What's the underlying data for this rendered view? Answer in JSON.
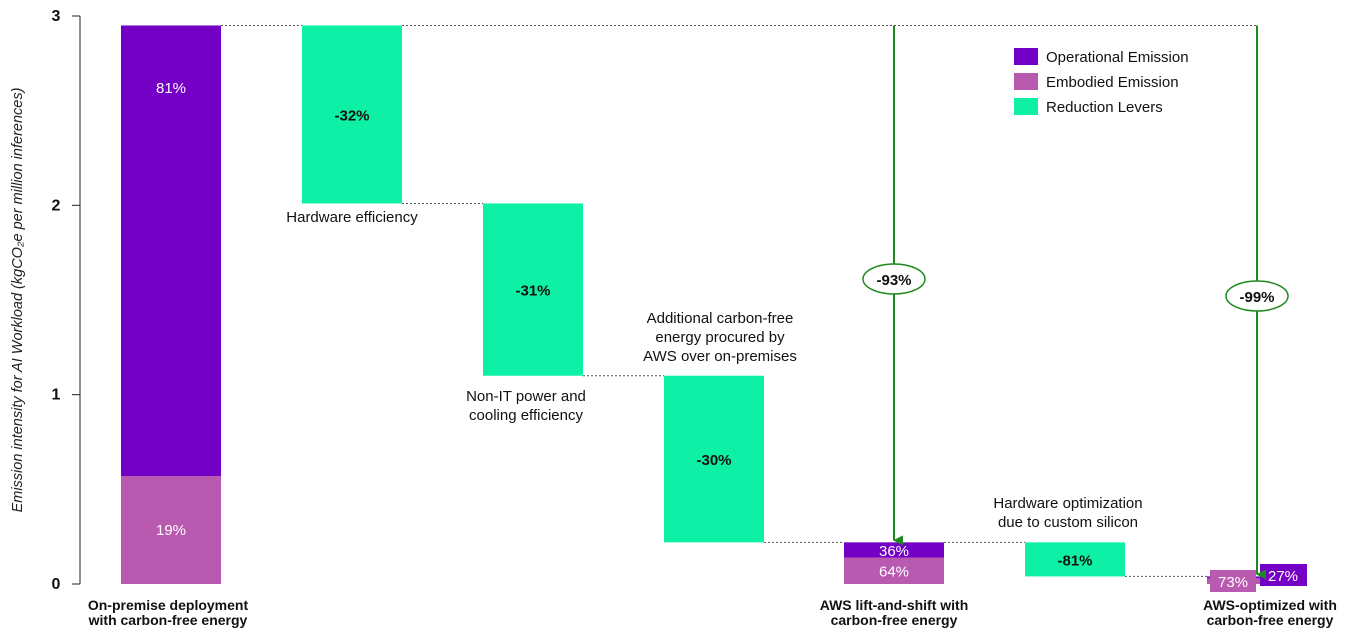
{
  "chart_data": {
    "type": "bar",
    "subtype": "waterfall",
    "ylabel": "Emission intensity for AI Workload",
    "ylabel_unit": "(kgCO₂e per million inferences)",
    "ylim": [
      0,
      3
    ],
    "y_ticks": [
      "0",
      "1",
      "2",
      "3"
    ],
    "grid": false,
    "legend": {
      "placement": "top-right",
      "entries": [
        {
          "label": "Operational Emission",
          "color": "#7300c4"
        },
        {
          "label": "Embodied Emission",
          "color": "#b85bb0"
        },
        {
          "label": "Reduction Levers",
          "color": "#0ef0a5"
        }
      ]
    },
    "bars": [
      {
        "kind": "total",
        "label_lines": [
          "On-premise deployment",
          "with carbon-free energy"
        ],
        "segments": [
          {
            "type": "Embodied Emission",
            "value": 0.57,
            "label": "19%"
          },
          {
            "type": "Operational Emission",
            "value": 2.38,
            "label": "81%"
          }
        ]
      },
      {
        "kind": "reduction",
        "label_lines": [
          "Hardware efficiency"
        ],
        "from": 2.95,
        "to": 2.01,
        "label": "-32%"
      },
      {
        "kind": "reduction",
        "label_lines": [
          "Non-IT power and",
          "cooling efficiency"
        ],
        "from": 2.01,
        "to": 1.1,
        "label": "-31%"
      },
      {
        "kind": "reduction",
        "label_lines": [
          "Additional carbon-free",
          "energy procured by",
          "AWS over on-premises"
        ],
        "from": 1.1,
        "to": 0.22,
        "label": "-30%"
      },
      {
        "kind": "total",
        "label_lines": [
          "AWS lift-and-shift with",
          "carbon-free energy"
        ],
        "segments": [
          {
            "type": "Embodied Emission",
            "value": 0.14,
            "label": "64%"
          },
          {
            "type": "Operational Emission",
            "value": 0.08,
            "label": "36%"
          }
        ]
      },
      {
        "kind": "reduction",
        "label_lines": [
          "Hardware optimization",
          "due to custom silicon"
        ],
        "from": 0.22,
        "to": 0.04,
        "label": "-81%"
      },
      {
        "kind": "total",
        "label_lines": [
          "AWS-optimized with",
          "carbon-free energy"
        ],
        "segments": [
          {
            "type": "Embodied Emission",
            "value": 0.03,
            "label": "73%"
          },
          {
            "type": "Operational Emission",
            "value": 0.01,
            "label": "27%"
          }
        ]
      }
    ],
    "overall_reductions": [
      {
        "target_bar": 4,
        "label": "-93%"
      },
      {
        "target_bar": 6,
        "label": "-99%"
      }
    ]
  }
}
